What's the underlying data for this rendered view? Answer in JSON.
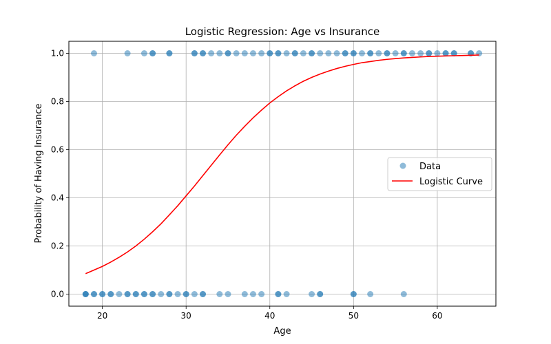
{
  "chart_data": {
    "type": "scatter",
    "title": "Logistic Regression: Age vs Insurance",
    "xlabel": "Age",
    "ylabel": "Probability of Having Insurance",
    "xlim": [
      16,
      67
    ],
    "ylim": [
      -0.05,
      1.05
    ],
    "xticks": [
      20,
      30,
      40,
      50,
      60
    ],
    "yticks": [
      0.0,
      0.2,
      0.4,
      0.6,
      0.8,
      1.0
    ],
    "xtick_labels": [
      "20",
      "30",
      "40",
      "50",
      "60"
    ],
    "ytick_labels": [
      "0.0",
      "0.2",
      "0.4",
      "0.6",
      "0.8",
      "1.0"
    ],
    "grid": true,
    "legend_position": "center-right",
    "series": [
      {
        "name": "Data",
        "kind": "scatter",
        "color": "#1f77b4",
        "points": [
          [
            18,
            0
          ],
          [
            18,
            0
          ],
          [
            18,
            0
          ],
          [
            19,
            0
          ],
          [
            19,
            0
          ],
          [
            20,
            0
          ],
          [
            20,
            0
          ],
          [
            21,
            0
          ],
          [
            21,
            0
          ],
          [
            22,
            0
          ],
          [
            23,
            0
          ],
          [
            23,
            0
          ],
          [
            24,
            0
          ],
          [
            24,
            0
          ],
          [
            25,
            0
          ],
          [
            25,
            0
          ],
          [
            26,
            0
          ],
          [
            26,
            0
          ],
          [
            27,
            0
          ],
          [
            28,
            0
          ],
          [
            28,
            0
          ],
          [
            29,
            0
          ],
          [
            30,
            0
          ],
          [
            30,
            0
          ],
          [
            31,
            0
          ],
          [
            32,
            0
          ],
          [
            32,
            0
          ],
          [
            34,
            0
          ],
          [
            35,
            0
          ],
          [
            37,
            0
          ],
          [
            38,
            0
          ],
          [
            39,
            0
          ],
          [
            41,
            0
          ],
          [
            41,
            0
          ],
          [
            42,
            0
          ],
          [
            45,
            0
          ],
          [
            46,
            0
          ],
          [
            46,
            0
          ],
          [
            50,
            0
          ],
          [
            50,
            0
          ],
          [
            52,
            0
          ],
          [
            56,
            0
          ],
          [
            19,
            1
          ],
          [
            23,
            1
          ],
          [
            25,
            1
          ],
          [
            26,
            1
          ],
          [
            26,
            1
          ],
          [
            28,
            1
          ],
          [
            28,
            1
          ],
          [
            31,
            1
          ],
          [
            31,
            1
          ],
          [
            32,
            1
          ],
          [
            32,
            1
          ],
          [
            33,
            1
          ],
          [
            34,
            1
          ],
          [
            35,
            1
          ],
          [
            35,
            1
          ],
          [
            36,
            1
          ],
          [
            37,
            1
          ],
          [
            38,
            1
          ],
          [
            39,
            1
          ],
          [
            40,
            1
          ],
          [
            40,
            1
          ],
          [
            41,
            1
          ],
          [
            41,
            1
          ],
          [
            42,
            1
          ],
          [
            43,
            1
          ],
          [
            43,
            1
          ],
          [
            44,
            1
          ],
          [
            45,
            1
          ],
          [
            45,
            1
          ],
          [
            46,
            1
          ],
          [
            47,
            1
          ],
          [
            48,
            1
          ],
          [
            49,
            1
          ],
          [
            49,
            1
          ],
          [
            50,
            1
          ],
          [
            50,
            1
          ],
          [
            51,
            1
          ],
          [
            52,
            1
          ],
          [
            52,
            1
          ],
          [
            53,
            1
          ],
          [
            54,
            1
          ],
          [
            54,
            1
          ],
          [
            55,
            1
          ],
          [
            56,
            1
          ],
          [
            56,
            1
          ],
          [
            57,
            1
          ],
          [
            58,
            1
          ],
          [
            59,
            1
          ],
          [
            59,
            1
          ],
          [
            60,
            1
          ],
          [
            61,
            1
          ],
          [
            61,
            1
          ],
          [
            62,
            1
          ],
          [
            62,
            1
          ],
          [
            64,
            1
          ],
          [
            64,
            1
          ],
          [
            65,
            1
          ]
        ]
      },
      {
        "name": "Logistic Curve",
        "kind": "line",
        "color": "#ff0000",
        "x": [
          18,
          19,
          20,
          21,
          22,
          23,
          24,
          25,
          26,
          27,
          28,
          29,
          30,
          31,
          32,
          33,
          34,
          35,
          36,
          37,
          38,
          39,
          40,
          41,
          42,
          43,
          44,
          45,
          46,
          47,
          48,
          49,
          50,
          51,
          52,
          53,
          54,
          55,
          56,
          57,
          58,
          59,
          60,
          61,
          62,
          63,
          64,
          65
        ],
        "y": [
          0.085,
          0.1,
          0.115,
          0.133,
          0.153,
          0.175,
          0.2,
          0.228,
          0.259,
          0.292,
          0.329,
          0.367,
          0.408,
          0.449,
          0.492,
          0.535,
          0.578,
          0.62,
          0.66,
          0.697,
          0.732,
          0.764,
          0.794,
          0.82,
          0.844,
          0.865,
          0.884,
          0.9,
          0.914,
          0.926,
          0.937,
          0.946,
          0.954,
          0.961,
          0.966,
          0.971,
          0.975,
          0.978,
          0.981,
          0.983,
          0.985,
          0.987,
          0.988,
          0.989,
          0.99,
          0.991,
          0.992,
          0.993
        ]
      }
    ]
  }
}
